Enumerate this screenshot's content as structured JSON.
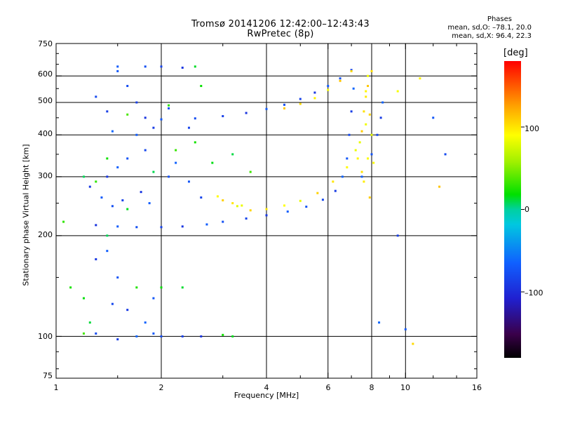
{
  "header": {
    "title_line1": "Tromsø 20141206 12:42:00–12:43:43",
    "title_line2": "RwPretec (8p)"
  },
  "phases_box": {
    "heading": "Phases",
    "line_o": "mean, sd,O: –78.1, 20.0",
    "line_x": "mean, sd,X:  96.4, 22.3"
  },
  "colorbar": {
    "label": "[deg]",
    "ticks": [
      "100",
      "0",
      "–100"
    ],
    "tick_values": [
      100,
      0,
      -100
    ],
    "range": [
      -180,
      180
    ]
  },
  "chart_data": {
    "type": "scatter",
    "title": "Tromsø 20141206 12:42:00–12:43:43",
    "subtitle": "RwPretec (8p)",
    "xlabel": "Frequency [MHz]",
    "ylabel": "Stationary phase Virtual Height [km]",
    "xscale": "log",
    "yscale": "log",
    "xlim": [
      1,
      16
    ],
    "ylim": [
      75,
      750
    ],
    "xticks": [
      "1",
      "2",
      "4",
      "6",
      "8",
      "10",
      "16"
    ],
    "xtick_values": [
      1,
      2,
      4,
      6,
      8,
      10,
      16
    ],
    "yticks": [
      "750",
      "600",
      "500",
      "400",
      "300",
      "200",
      "100",
      "75"
    ],
    "ytick_values": [
      750,
      600,
      500,
      400,
      300,
      200,
      100,
      75
    ],
    "grid_x": [
      2,
      4,
      6,
      8,
      10
    ],
    "grid_y": [
      600,
      500,
      400,
      300,
      200,
      100
    ],
    "color_encodes": "phase (deg)",
    "series": [
      {
        "mode": "O",
        "phase_mean": -78.1,
        "points": [
          [
            1.3,
            215
          ],
          [
            1.5,
            213
          ],
          [
            1.7,
            212
          ],
          [
            2.0,
            212
          ],
          [
            2.3,
            213
          ],
          [
            2.7,
            216
          ],
          [
            3.0,
            220
          ],
          [
            3.5,
            225
          ],
          [
            4.0,
            230
          ],
          [
            4.6,
            236
          ],
          [
            5.2,
            244
          ],
          [
            5.8,
            256
          ],
          [
            6.3,
            272
          ],
          [
            6.6,
            300
          ],
          [
            6.8,
            340
          ],
          [
            6.9,
            400
          ],
          [
            7.0,
            470
          ],
          [
            7.1,
            550
          ],
          [
            2.0,
            445
          ],
          [
            2.5,
            448
          ],
          [
            3.0,
            455
          ],
          [
            3.5,
            465
          ],
          [
            4.0,
            478
          ],
          [
            4.5,
            492
          ],
          [
            5.0,
            512
          ],
          [
            5.5,
            535
          ],
          [
            6.0,
            560
          ],
          [
            6.5,
            590
          ],
          [
            7.0,
            625
          ],
          [
            1.4,
            300
          ],
          [
            1.5,
            320
          ],
          [
            1.6,
            340
          ],
          [
            1.8,
            360
          ],
          [
            1.9,
            420
          ],
          [
            2.2,
            330
          ],
          [
            2.4,
            290
          ],
          [
            1.3,
            520
          ],
          [
            1.4,
            470
          ],
          [
            1.45,
            410
          ],
          [
            1.5,
            620
          ],
          [
            1.6,
            560
          ],
          [
            1.7,
            500
          ],
          [
            1.8,
            450
          ],
          [
            1.35,
            260
          ],
          [
            1.45,
            245
          ],
          [
            1.55,
            255
          ],
          [
            1.75,
            270
          ],
          [
            1.85,
            250
          ],
          [
            2.1,
            300
          ],
          [
            2.6,
            260
          ],
          [
            1.3,
            170
          ],
          [
            1.4,
            180
          ],
          [
            1.5,
            150
          ],
          [
            1.45,
            125
          ],
          [
            1.6,
            120
          ],
          [
            1.8,
            110
          ],
          [
            1.9,
            130
          ],
          [
            1.3,
            102
          ],
          [
            1.5,
            98
          ],
          [
            1.7,
            100
          ],
          [
            1.9,
            102
          ],
          [
            2.0,
            100
          ],
          [
            2.3,
            100
          ],
          [
            2.6,
            100
          ],
          [
            1.5,
            640
          ],
          [
            1.8,
            640
          ],
          [
            2.0,
            640
          ],
          [
            2.3,
            635
          ],
          [
            1.7,
            400
          ],
          [
            2.1,
            480
          ],
          [
            2.4,
            420
          ],
          [
            1.25,
            280
          ],
          [
            7.5,
            300
          ],
          [
            8.0,
            350
          ],
          [
            8.3,
            400
          ],
          [
            8.5,
            450
          ],
          [
            8.6,
            500
          ],
          [
            12.0,
            450
          ],
          [
            13.0,
            350
          ],
          [
            9.5,
            200
          ],
          [
            8.4,
            110
          ],
          [
            10.0,
            105
          ]
        ]
      },
      {
        "mode": "X",
        "phase_mean": 96.4,
        "points": [
          [
            3.3,
            245
          ],
          [
            3.6,
            238
          ],
          [
            4.0,
            240
          ],
          [
            4.5,
            246
          ],
          [
            5.0,
            254
          ],
          [
            5.6,
            268
          ],
          [
            6.2,
            290
          ],
          [
            6.8,
            320
          ],
          [
            7.2,
            360
          ],
          [
            7.5,
            410
          ],
          [
            7.6,
            470
          ],
          [
            7.7,
            540
          ],
          [
            7.8,
            600
          ],
          [
            4.5,
            480
          ],
          [
            5.0,
            495
          ],
          [
            5.5,
            515
          ],
          [
            6.0,
            545
          ],
          [
            6.5,
            580
          ],
          [
            7.0,
            620
          ],
          [
            7.6,
            290
          ],
          [
            7.8,
            340
          ],
          [
            8.0,
            400
          ],
          [
            7.9,
            460
          ],
          [
            7.7,
            520
          ],
          [
            8.1,
            330
          ],
          [
            7.4,
            380
          ],
          [
            3.0,
            255
          ],
          [
            3.2,
            250
          ],
          [
            2.9,
            262
          ],
          [
            3.4,
            246
          ],
          [
            7.9,
            260
          ],
          [
            7.5,
            310
          ],
          [
            7.3,
            340
          ],
          [
            7.7,
            430
          ],
          [
            7.8,
            560
          ],
          [
            8.0,
            620
          ],
          [
            11.0,
            590
          ],
          [
            9.5,
            540
          ],
          [
            12.5,
            280
          ],
          [
            10.5,
            95
          ]
        ]
      },
      {
        "mode": "scattered",
        "phase_mean": 20,
        "points": [
          [
            1.2,
            300
          ],
          [
            1.3,
            290
          ],
          [
            1.4,
            340
          ],
          [
            1.6,
            240
          ],
          [
            1.9,
            310
          ],
          [
            2.2,
            360
          ],
          [
            2.5,
            380
          ],
          [
            2.8,
            330
          ],
          [
            3.2,
            350
          ],
          [
            3.6,
            310
          ],
          [
            1.1,
            140
          ],
          [
            1.2,
            130
          ],
          [
            1.25,
            110
          ],
          [
            1.2,
            102
          ],
          [
            1.7,
            140
          ],
          [
            2.0,
            140
          ],
          [
            2.3,
            140
          ],
          [
            1.6,
            460
          ],
          [
            2.1,
            490
          ],
          [
            2.6,
            560
          ],
          [
            2.5,
            640
          ],
          [
            1.4,
            200
          ],
          [
            1.05,
            220
          ],
          [
            3.0,
            101
          ],
          [
            3.2,
            100
          ]
        ]
      }
    ]
  }
}
